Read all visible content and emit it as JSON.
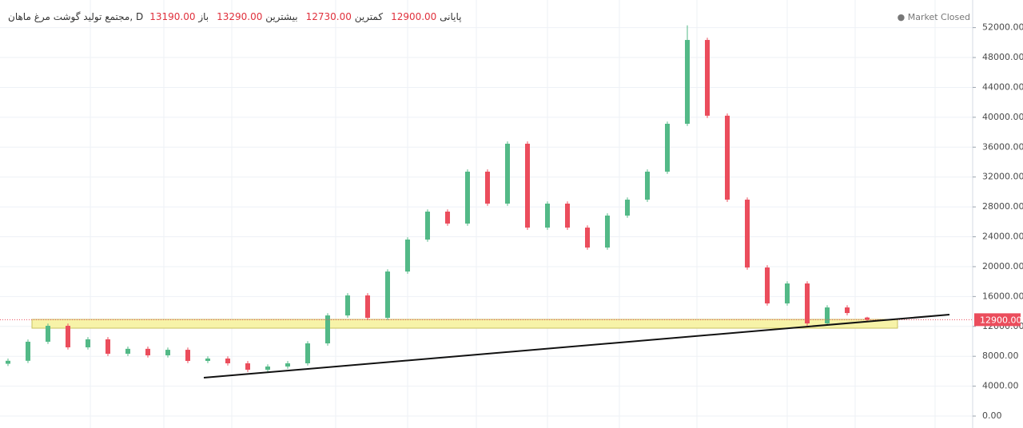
{
  "chart_data": {
    "type": "candlestick",
    "title": "مجتمع تولید گوشت مرغ ماهان, D",
    "status": "Market Closed",
    "ohlc_header": [
      {
        "name": "باز",
        "value": 13190,
        "value_label": "13190.00"
      },
      {
        "name": "بیشترین",
        "value": 13290,
        "value_label": "13290.00"
      },
      {
        "name": "کمترین",
        "value": 12730,
        "value_label": "12730.00"
      },
      {
        "name": "پایانی",
        "value": 12900,
        "value_label": "12900.00"
      }
    ],
    "last_price": {
      "value": 12900,
      "label": "12900.00"
    },
    "up_color": "#53b987",
    "down_color": "#eb4d5c",
    "open": [
      7000,
      7400,
      9950,
      12080,
      9200,
      10270,
      8340,
      9000,
      8130,
      8870,
      7380,
      7700,
      7060,
      6200,
      6630,
      7060,
      9730,
      13470,
      16150,
      13150,
      19350,
      23630,
      27370,
      25770,
      32720,
      28440,
      36460,
      25230,
      28440,
      25230,
      22560,
      26840,
      28970,
      32720,
      39130,
      50350,
      40210,
      28970,
      19890,
      15080,
      17750,
      12400,
      14540,
      13190
    ],
    "high": [
      7700,
      10250,
      12380,
      12380,
      10570,
      10570,
      9300,
      9300,
      9170,
      9170,
      8000,
      8000,
      7360,
      6930,
      7360,
      10030,
      13770,
      16450,
      16450,
      19650,
      23930,
      27670,
      27670,
      33020,
      33020,
      36760,
      36760,
      28740,
      28740,
      25530,
      27140,
      29270,
      33020,
      39430,
      52300,
      50650,
      40510,
      29270,
      20190,
      18050,
      18050,
      14840,
      14840,
      13290
    ],
    "low": [
      6700,
      7100,
      9650,
      8900,
      8900,
      8040,
      8040,
      7830,
      7830,
      7080,
      7080,
      6760,
      5900,
      5900,
      6330,
      6760,
      9430,
      13170,
      12850,
      12850,
      19050,
      23330,
      25470,
      25470,
      28140,
      28140,
      24930,
      24930,
      24930,
      22260,
      22260,
      26540,
      28670,
      32420,
      38830,
      39910,
      28670,
      19590,
      14780,
      14780,
      12100,
      12100,
      13490,
      12730
    ],
    "close": [
      7400,
      9950,
      12080,
      9200,
      10270,
      8340,
      9000,
      8130,
      8870,
      7380,
      7700,
      7060,
      6200,
      6630,
      7060,
      9730,
      13470,
      16150,
      13150,
      19350,
      23630,
      27370,
      25770,
      32720,
      28440,
      36460,
      25230,
      28440,
      25230,
      22560,
      26840,
      28970,
      32720,
      39130,
      50350,
      40210,
      28970,
      19890,
      15080,
      17750,
      12400,
      14540,
      13790,
      12900
    ],
    "ylim": [
      -1600,
      55700
    ],
    "yticks": [
      {
        "value": 0,
        "label": "0.00"
      },
      {
        "value": 4000,
        "label": "4000.00"
      },
      {
        "value": 8000,
        "label": "8000.00"
      },
      {
        "value": 12000,
        "label": "12000.00"
      },
      {
        "value": 16000,
        "label": "16000.00"
      },
      {
        "value": 20000,
        "label": "20000.00"
      },
      {
        "value": 24000,
        "label": "24000.00"
      },
      {
        "value": 28000,
        "label": "28000.00"
      },
      {
        "value": 32000,
        "label": "32000.00"
      },
      {
        "value": 36000,
        "label": "36000.00"
      },
      {
        "value": 40000,
        "label": "40000.00"
      },
      {
        "value": 44000,
        "label": "44000.00"
      },
      {
        "value": 48000,
        "label": "48000.00"
      },
      {
        "value": 52000,
        "label": "52000.00"
      }
    ],
    "grid": true
  }
}
